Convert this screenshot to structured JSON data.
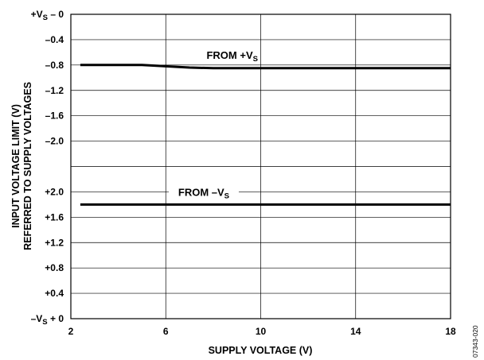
{
  "chart_data": {
    "type": "line",
    "xlabel": "SUPPLY VOLTAGE (V)",
    "ylabel_line1": "INPUT VOLTAGE LIMIT (V)",
    "ylabel_line2": "REFERRED TO SUPPLY VOLTAGES",
    "xlim": [
      2,
      18
    ],
    "x_ticks": [
      {
        "value": 2,
        "label": "2"
      },
      {
        "value": 6,
        "label": "6"
      },
      {
        "value": 10,
        "label": "10"
      },
      {
        "value": 14,
        "label": "14"
      },
      {
        "value": 18,
        "label": "18"
      }
    ],
    "y_upper_panel": {
      "reference": "+VS",
      "range": [
        0,
        -2.4
      ],
      "tick_labels": [
        {
          "value": 0,
          "label": "+VS – 0"
        },
        {
          "value": -0.4,
          "label": "–0.4"
        },
        {
          "value": -0.8,
          "label": "–0.8"
        },
        {
          "value": -1.2,
          "label": "–1.2"
        },
        {
          "value": -1.6,
          "label": "–1.6"
        },
        {
          "value": -2.0,
          "label": "–2.0"
        }
      ]
    },
    "y_lower_panel": {
      "reference": "–VS",
      "range": [
        2.4,
        0
      ],
      "tick_labels": [
        {
          "value": 2.0,
          "label": "+2.0"
        },
        {
          "value": 1.6,
          "label": "+1.6"
        },
        {
          "value": 1.2,
          "label": "+1.2"
        },
        {
          "value": 0.8,
          "label": "+0.8"
        },
        {
          "value": 0.4,
          "label": "+0.4"
        },
        {
          "value": 0,
          "label": "–VS + 0"
        }
      ]
    },
    "grid": true,
    "series": [
      {
        "name": "FROM +VS",
        "panel": "upper",
        "x": [
          2.4,
          5,
          6,
          7,
          8,
          10,
          14,
          18
        ],
        "y": [
          -0.8,
          -0.8,
          -0.82,
          -0.84,
          -0.85,
          -0.85,
          -0.85,
          -0.85
        ]
      },
      {
        "name": "FROM –VS",
        "panel": "lower",
        "x": [
          2.4,
          6,
          10,
          14,
          18
        ],
        "y": [
          1.8,
          1.8,
          1.8,
          1.8,
          1.8
        ]
      }
    ],
    "figure_code": "07343-020"
  }
}
